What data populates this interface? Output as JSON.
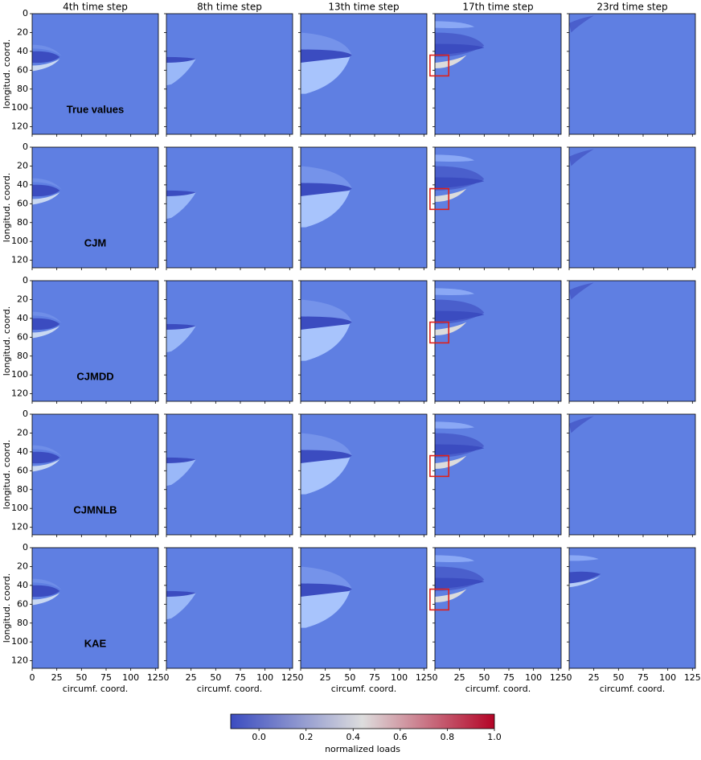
{
  "chart_data": {
    "type": "heatmap",
    "column_titles": [
      "4th time step",
      "8th time step",
      "13th time step",
      "17th time step",
      "23rd time step"
    ],
    "row_labels": [
      "True values",
      "CJM",
      "CJMDD",
      "CJMNLB",
      "KAE"
    ],
    "xlabel": "circumf. coord.",
    "ylabel": "longitud. coord.",
    "xlim": [
      0,
      128
    ],
    "ylim": [
      128,
      0
    ],
    "xticks": [
      0,
      25,
      50,
      75,
      100,
      125
    ],
    "yticks": [
      0,
      20,
      40,
      60,
      80,
      100,
      120
    ],
    "colorbar": {
      "label": "normalized loads",
      "clim": [
        -0.12,
        1.0
      ],
      "ticks": [
        {
          "value": 0,
          "label": "0.0"
        },
        0.2,
        0.4,
        0.6,
        0.8,
        {
          "value": 1,
          "label": "1.0"
        }
      ],
      "colors": [
        "#3b4cc0",
        "#dddddd",
        "#b40426"
      ]
    }
  }
}
